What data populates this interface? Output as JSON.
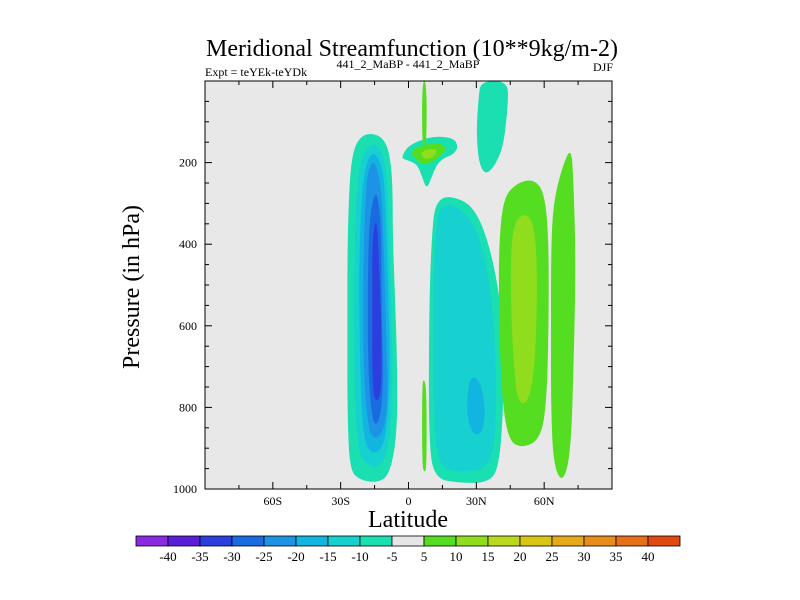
{
  "chart_data": {
    "type": "contour",
    "title": "Meridional Streamfunction (10**9kg/m-2)",
    "subtitle_left": "Expt = teYEk-teYDk",
    "subtitle_center": "441_2_MaBP - 441_2_MaBP",
    "subtitle_right": "DJF",
    "xlabel": "Latitude",
    "ylabel": "Pressure (in hPa)",
    "xlim": [
      -90,
      90
    ],
    "ylim": [
      1000,
      0
    ],
    "y_invert": true,
    "xticks": [
      {
        "value": -60,
        "label": "60S"
      },
      {
        "value": -30,
        "label": "30S"
      },
      {
        "value": 0,
        "label": "0"
      },
      {
        "value": 30,
        "label": "30N"
      },
      {
        "value": 60,
        "label": "60N"
      }
    ],
    "yticks": [
      {
        "value": 200,
        "label": "200"
      },
      {
        "value": 400,
        "label": "400"
      },
      {
        "value": 600,
        "label": "600"
      },
      {
        "value": 800,
        "label": "800"
      },
      {
        "value": 1000,
        "label": "1000"
      }
    ],
    "background_color": "#e8e8e8",
    "levels": [
      -40,
      -35,
      -30,
      -25,
      -20,
      -15,
      -10,
      -5,
      5,
      10,
      15,
      20,
      25,
      30,
      35,
      40
    ],
    "colorbar_labels": [
      "-40",
      "-35",
      "-30",
      "-25",
      "-20",
      "-15",
      "-10",
      "-5",
      "5",
      "10",
      "15",
      "20",
      "25",
      "30",
      "35",
      "40"
    ],
    "colorbar_colors": [
      "#8a2be2",
      "#5a1fd8",
      "#2a3fdd",
      "#1a6ae0",
      "#1d93e6",
      "#12b4e0",
      "#17d0d0",
      "#1adfb0",
      "#e6e6e6",
      "#55dd22",
      "#8fdd1c",
      "#b9d81e",
      "#d9c512",
      "#e6a91a",
      "#e68d1a",
      "#e6701a",
      "#e04a10"
    ],
    "contour_regions": [
      {
        "name": "sh-cell-outer",
        "color": "#1adfb0",
        "points": [
          [
            -14,
            130
          ],
          [
            -10,
            150
          ],
          [
            -8,
            190
          ],
          [
            -7,
            260
          ],
          [
            -7,
            380
          ],
          [
            -6,
            520
          ],
          [
            -5,
            700
          ],
          [
            -5,
            860
          ],
          [
            -8,
            960
          ],
          [
            -13,
            985
          ],
          [
            -22,
            978
          ],
          [
            -26,
            950
          ],
          [
            -27,
            820
          ],
          [
            -27,
            600
          ],
          [
            -27,
            400
          ],
          [
            -26,
            230
          ],
          [
            -24,
            160
          ],
          [
            -20,
            130
          ]
        ]
      },
      {
        "name": "sh-cell-10",
        "color": "#17d0d0",
        "points": [
          [
            -14,
            150
          ],
          [
            -10,
            200
          ],
          [
            -9,
            300
          ],
          [
            -8,
            480
          ],
          [
            -7,
            700
          ],
          [
            -8,
            880
          ],
          [
            -12,
            945
          ],
          [
            -18,
            945
          ],
          [
            -23,
            900
          ],
          [
            -24,
            700
          ],
          [
            -24,
            450
          ],
          [
            -23,
            250
          ],
          [
            -20,
            170
          ]
        ]
      },
      {
        "name": "sh-cell-15",
        "color": "#12b4e0",
        "points": [
          [
            -15,
            170
          ],
          [
            -11,
            220
          ],
          [
            -10,
            330
          ],
          [
            -9,
            500
          ],
          [
            -8,
            720
          ],
          [
            -10,
            880
          ],
          [
            -14,
            915
          ],
          [
            -19,
            900
          ],
          [
            -21,
            800
          ],
          [
            -22,
            500
          ],
          [
            -21,
            300
          ],
          [
            -19,
            200
          ]
        ]
      },
      {
        "name": "sh-cell-20",
        "color": "#1d93e6",
        "points": [
          [
            -15,
            190
          ],
          [
            -12,
            260
          ],
          [
            -11,
            400
          ],
          [
            -10,
            600
          ],
          [
            -9,
            780
          ],
          [
            -11,
            860
          ],
          [
            -15,
            880
          ],
          [
            -18,
            850
          ],
          [
            -20,
            700
          ],
          [
            -20,
            450
          ],
          [
            -19,
            280
          ],
          [
            -18,
            220
          ]
        ]
      },
      {
        "name": "sh-cell-25",
        "color": "#1a6ae0",
        "points": [
          [
            -14,
            260
          ],
          [
            -12,
            360
          ],
          [
            -12,
            550
          ],
          [
            -11,
            750
          ],
          [
            -13,
            840
          ],
          [
            -16,
            840
          ],
          [
            -18,
            700
          ],
          [
            -18,
            450
          ],
          [
            -17,
            320
          ]
        ]
      },
      {
        "name": "sh-cell-30",
        "color": "#2a3fdd",
        "points": [
          [
            -14,
            330
          ],
          [
            -13,
            450
          ],
          [
            -12,
            600
          ],
          [
            -12,
            760
          ],
          [
            -14,
            790
          ],
          [
            -16,
            760
          ],
          [
            -16,
            550
          ],
          [
            -16,
            380
          ]
        ]
      },
      {
        "name": "nh-cell-outer",
        "color": "#1adfb0",
        "points": [
          [
            12,
            280
          ],
          [
            25,
            290
          ],
          [
            32,
            340
          ],
          [
            38,
            450
          ],
          [
            42,
            600
          ],
          [
            42,
            800
          ],
          [
            40,
            950
          ],
          [
            35,
            985
          ],
          [
            22,
            985
          ],
          [
            12,
            975
          ],
          [
            9,
            900
          ],
          [
            9,
            600
          ],
          [
            10,
            400
          ]
        ]
      },
      {
        "name": "nh-cell-10",
        "color": "#17d0d0",
        "points": [
          [
            14,
            300
          ],
          [
            23,
            310
          ],
          [
            30,
            360
          ],
          [
            35,
            460
          ],
          [
            38,
            600
          ],
          [
            39,
            800
          ],
          [
            37,
            950
          ],
          [
            22,
            960
          ],
          [
            13,
            945
          ],
          [
            11,
            800
          ],
          [
            11,
            500
          ],
          [
            12,
            370
          ]
        ]
      },
      {
        "name": "nh-cell-15",
        "color": "#12b4e0",
        "points": [
          [
            28,
            720
          ],
          [
            32,
            740
          ],
          [
            34,
            800
          ],
          [
            33,
            860
          ],
          [
            29,
            870
          ],
          [
            26,
            830
          ],
          [
            26,
            760
          ]
        ]
      },
      {
        "name": "eq-top-outer",
        "color": "#1adfb0",
        "points": [
          [
            -2,
            175
          ],
          [
            0,
            160
          ],
          [
            5,
            145
          ],
          [
            12,
            135
          ],
          [
            20,
            140
          ],
          [
            22,
            160
          ],
          [
            20,
            180
          ],
          [
            15,
            190
          ],
          [
            12,
            210
          ],
          [
            10,
            240
          ],
          [
            8,
            265
          ],
          [
            6,
            235
          ],
          [
            4,
            205
          ],
          [
            0,
            195
          ],
          [
            -3,
            190
          ]
        ]
      },
      {
        "name": "eq-top-10",
        "color": "#55dd22",
        "points": [
          [
            3,
            165
          ],
          [
            8,
            155
          ],
          [
            14,
            152
          ],
          [
            17,
            165
          ],
          [
            14,
            185
          ],
          [
            10,
            200
          ],
          [
            6,
            205
          ],
          [
            3,
            190
          ],
          [
            1,
            175
          ]
        ]
      },
      {
        "name": "eq-top-15",
        "color": "#8fdd1c",
        "points": [
          [
            5,
            175
          ],
          [
            10,
            165
          ],
          [
            13,
            170
          ],
          [
            11,
            188
          ],
          [
            7,
            193
          ]
        ]
      },
      {
        "name": "eq-thin-top",
        "color": "#55dd22",
        "points": [
          [
            6,
            0
          ],
          [
            8,
            0
          ],
          [
            8,
            150
          ],
          [
            7,
            160
          ],
          [
            6,
            150
          ]
        ]
      },
      {
        "name": "eq-thin-bottom",
        "color": "#55dd22",
        "points": [
          [
            6,
            740
          ],
          [
            7,
            730
          ],
          [
            8,
            760
          ],
          [
            8,
            950
          ],
          [
            7,
            960
          ],
          [
            6,
            940
          ]
        ]
      },
      {
        "name": "nh-upper-plume",
        "color": "#1adfb0",
        "points": [
          [
            32,
            0
          ],
          [
            44,
            0
          ],
          [
            44,
            60
          ],
          [
            42,
            160
          ],
          [
            38,
            210
          ],
          [
            34,
            230
          ],
          [
            31,
            200
          ],
          [
            30,
            120
          ],
          [
            31,
            40
          ]
        ]
      },
      {
        "name": "nh-ferrel-outer",
        "color": "#55dd22",
        "points": [
          [
            42,
            285
          ],
          [
            48,
            250
          ],
          [
            55,
            240
          ],
          [
            60,
            270
          ],
          [
            62,
            380
          ],
          [
            62,
            600
          ],
          [
            61,
            800
          ],
          [
            58,
            880
          ],
          [
            50,
            900
          ],
          [
            44,
            880
          ],
          [
            41,
            760
          ],
          [
            40,
            550
          ],
          [
            40,
            400
          ]
        ]
      },
      {
        "name": "nh-ferrel-15",
        "color": "#8fdd1c",
        "points": [
          [
            46,
            350
          ],
          [
            52,
            320
          ],
          [
            56,
            360
          ],
          [
            57,
            500
          ],
          [
            56,
            700
          ],
          [
            53,
            790
          ],
          [
            48,
            790
          ],
          [
            46,
            650
          ],
          [
            45,
            480
          ]
        ]
      },
      {
        "name": "nh-polar",
        "color": "#55dd22",
        "points": [
          [
            64,
            300
          ],
          [
            68,
            210
          ],
          [
            72,
            160
          ],
          [
            73,
            250
          ],
          [
            74,
            450
          ],
          [
            73,
            700
          ],
          [
            72,
            880
          ],
          [
            70,
            960
          ],
          [
            67,
            980
          ],
          [
            64,
            930
          ],
          [
            63,
            800
          ],
          [
            63,
            600
          ],
          [
            63,
            420
          ]
        ]
      }
    ]
  }
}
